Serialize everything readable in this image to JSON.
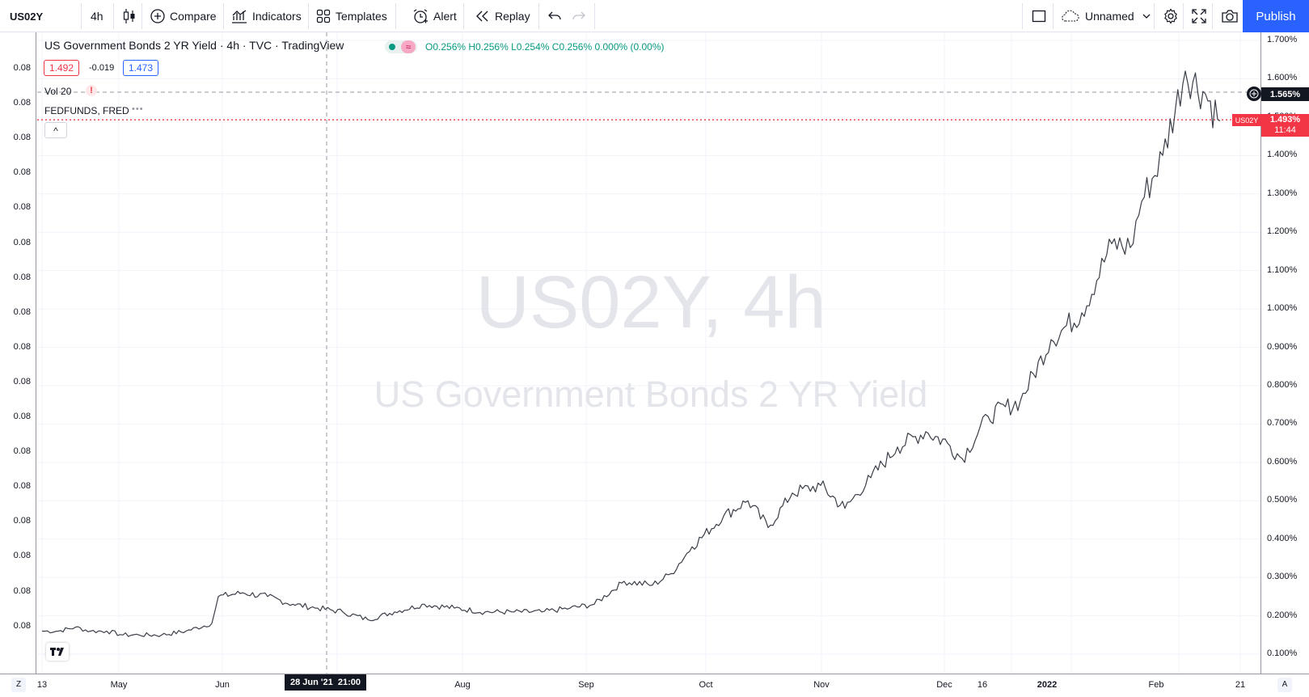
{
  "toolbar": {
    "symbol": "US02Y",
    "interval": "4h",
    "compare": "Compare",
    "indicators": "Indicators",
    "templates": "Templates",
    "alert": "Alert",
    "replay": "Replay",
    "layout_name": "Unnamed",
    "publish": "Publish"
  },
  "legend": {
    "title": "US Government Bonds 2 YR Yield · 4h · TVC · TradingView",
    "ohlc": "O0.256% H0.256% L0.254% C0.256% 0.000% (0.00%)",
    "sell_price": "1.492",
    "spread": "-0.019",
    "buy_price": "1.473",
    "vol": "Vol 20",
    "vol_warning": "!",
    "fedfunds": "FEDFUNDS, FRED",
    "fedfunds_more": "•••",
    "collapse": "^"
  },
  "watermark": {
    "line1": "US02Y, 4h",
    "line2": "US Government Bonds 2 YR Yield"
  },
  "left_scale_value": "0.08",
  "right_scale": {
    "ticks": [
      "1.700%",
      "1.600%",
      "1.500%",
      "1.400%",
      "1.300%",
      "1.200%",
      "1.100%",
      "1.000%",
      "0.900%",
      "0.800%",
      "0.700%",
      "0.600%",
      "0.500%",
      "0.400%",
      "0.300%",
      "0.200%",
      "0.100%"
    ],
    "crosshair_price": "1.565%",
    "last_price_symbol": "US02Y",
    "last_price": "1.493%",
    "countdown": "11:44"
  },
  "time_axis": {
    "labels": [
      "13",
      "May",
      "Jun",
      "Aug",
      "Sep",
      "Oct",
      "Nov",
      "Dec",
      "16",
      "2022",
      "Feb",
      "21"
    ],
    "crosshair_time": "28 Jun '21  21:00",
    "left_corner": "Z",
    "right_corner": "A"
  },
  "colors": {
    "up": "#26a69a",
    "down": "#ef5350",
    "accent": "#2962ff",
    "last_price": "#f23645"
  },
  "chart_data": {
    "type": "line",
    "title": "US Government Bonds 2 YR Yield · 4h · TVC · TradingView",
    "ylabel": "",
    "ylim": [
      0.05,
      1.72
    ],
    "series": [
      {
        "name": "US02Y",
        "x": [
          "13 Apr",
          "20 Apr",
          "27 Apr",
          "4 May",
          "11 May",
          "18 May",
          "25 May",
          "1 Jun",
          "8 Jun",
          "15 Jun",
          "17 Jun",
          "22 Jun",
          "28 Jun",
          "5 Jul",
          "12 Jul",
          "19 Jul",
          "26 Jul",
          "2 Aug",
          "9 Aug",
          "16 Aug",
          "23 Aug",
          "30 Aug",
          "6 Sep",
          "13 Sep",
          "20 Sep",
          "27 Sep",
          "4 Oct",
          "11 Oct",
          "18 Oct",
          "25 Oct",
          "1 Nov",
          "8 Nov",
          "15 Nov",
          "22 Nov",
          "26 Nov",
          "29 Nov",
          "6 Dec",
          "13 Dec",
          "16 Dec",
          "20 Dec",
          "27 Dec",
          "3 Jan",
          "10 Jan",
          "17 Jan",
          "24 Jan",
          "31 Jan",
          "4 Feb",
          "7 Feb",
          "10 Feb",
          "14 Feb",
          "17 Feb"
        ],
        "values": [
          0.16,
          0.16,
          0.17,
          0.16,
          0.16,
          0.15,
          0.15,
          0.15,
          0.16,
          0.18,
          0.25,
          0.26,
          0.25,
          0.23,
          0.22,
          0.21,
          0.19,
          0.21,
          0.23,
          0.22,
          0.21,
          0.21,
          0.21,
          0.22,
          0.23,
          0.29,
          0.28,
          0.31,
          0.38,
          0.46,
          0.5,
          0.43,
          0.52,
          0.54,
          0.48,
          0.56,
          0.64,
          0.68,
          0.65,
          0.61,
          0.72,
          0.76,
          0.92,
          0.99,
          1.17,
          1.16,
          1.28,
          1.4,
          1.62,
          1.56,
          1.49
        ]
      }
    ]
  }
}
